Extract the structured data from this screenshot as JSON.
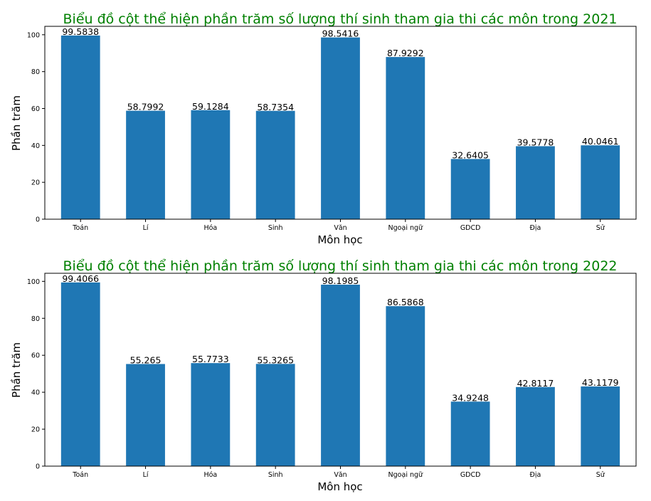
{
  "colors": {
    "bar": "#1f77b4",
    "title": "#008000",
    "axis": "#000000"
  },
  "chart_data": [
    {
      "type": "bar",
      "title": "Biểu đồ cột thể hiện phần trăm số lượng thí sinh tham gia thi các môn trong 2021",
      "xlabel": "Môn học",
      "ylabel": "Phần trăm",
      "ylim": [
        0,
        104.56
      ],
      "yticks": [
        "0",
        "20",
        "40",
        "60",
        "80",
        "100"
      ],
      "grid": false,
      "categories": [
        "Toán",
        "Lí",
        "Hóa",
        "Sinh",
        "Văn",
        "Ngoại ngữ",
        "GDCD",
        "Địa",
        "Sử"
      ],
      "values": [
        99.5838,
        58.7992,
        59.1284,
        58.7354,
        98.5416,
        87.9292,
        32.6405,
        39.5778,
        40.0461
      ],
      "data_labels": [
        "99.5838",
        "58.7992",
        "59.1284",
        "58.7354",
        "98.5416",
        "87.9292",
        "32.6405",
        "39.5778",
        "40.0461"
      ]
    },
    {
      "type": "bar",
      "title": "Biểu đồ cột thể hiện phần trăm số lượng thí sinh tham gia thi các môn trong 2022",
      "xlabel": "Môn học",
      "ylabel": "Phần trăm",
      "ylim": [
        0,
        104.37
      ],
      "yticks": [
        "0",
        "20",
        "40",
        "60",
        "80",
        "100"
      ],
      "grid": false,
      "categories": [
        "Toán",
        "Lí",
        "Hóa",
        "Sinh",
        "Văn",
        "Ngoại ngữ",
        "GDCD",
        "Địa",
        "Sử"
      ],
      "values": [
        99.4066,
        55.265,
        55.7733,
        55.3265,
        98.1985,
        86.5868,
        34.9248,
        42.8117,
        43.1179
      ],
      "data_labels": [
        "99.4066",
        "55.265",
        "55.7733",
        "55.3265",
        "98.1985",
        "86.5868",
        "34.9248",
        "42.8117",
        "43.1179"
      ]
    }
  ]
}
